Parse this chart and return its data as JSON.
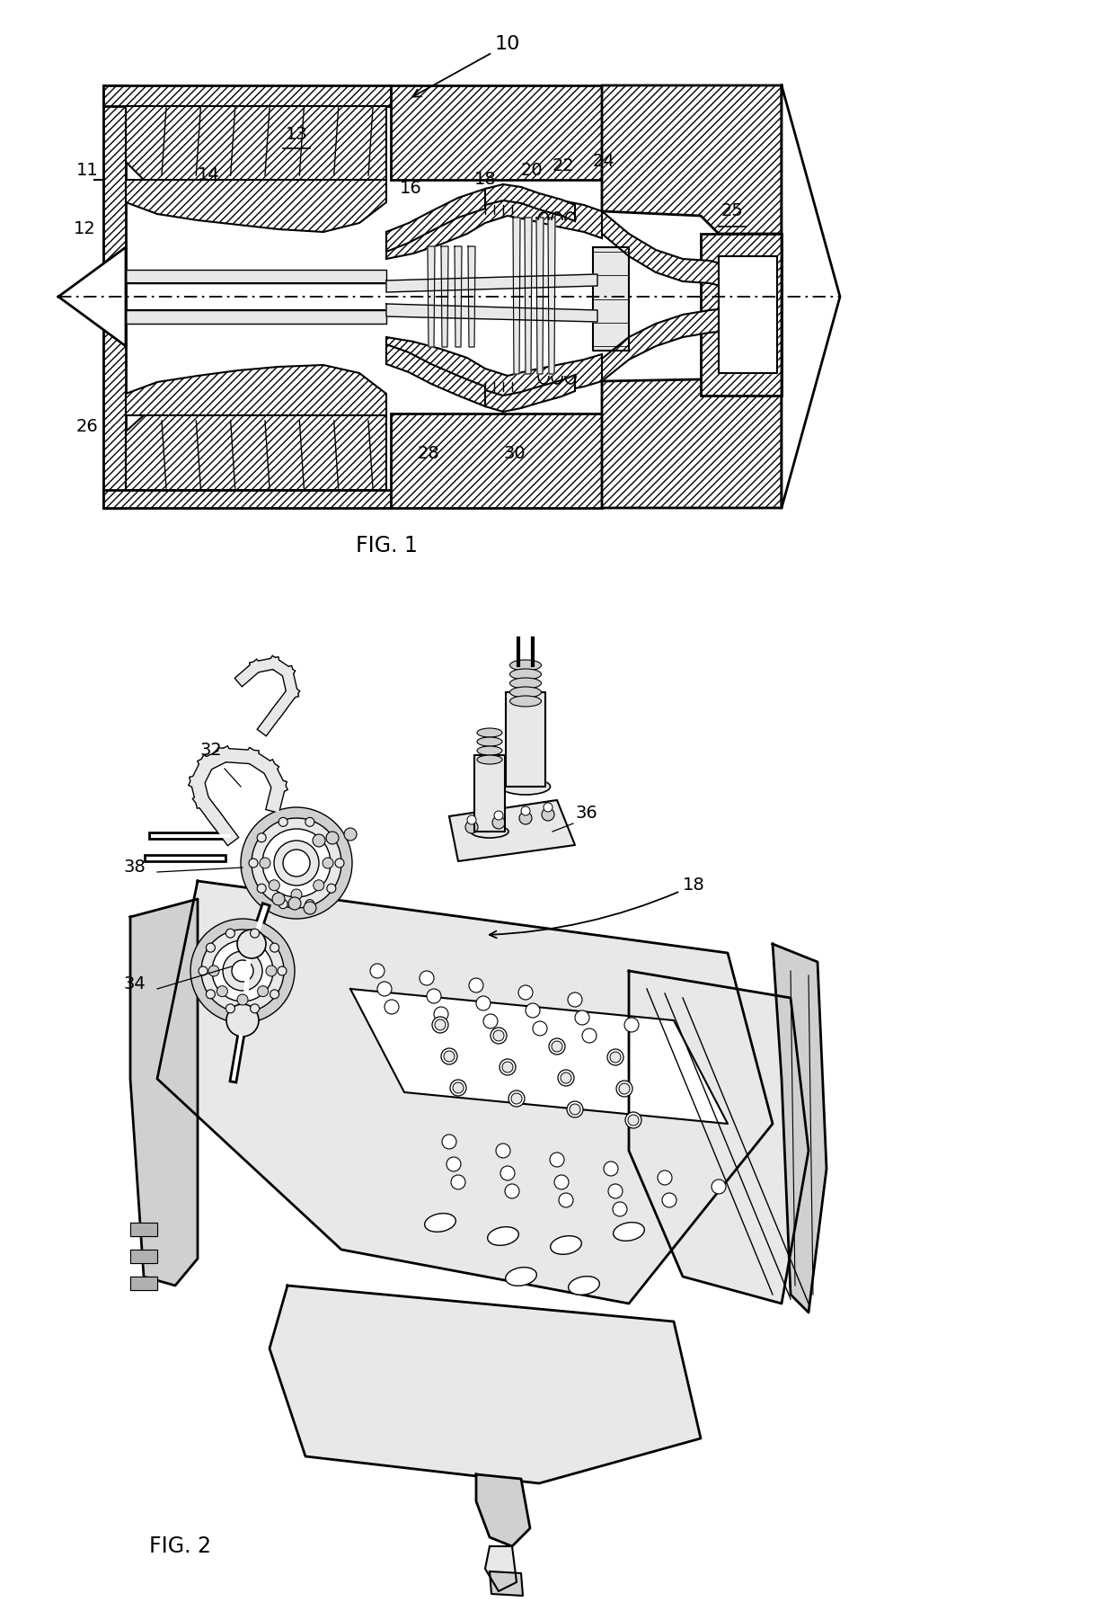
{
  "background_color": "#ffffff",
  "fig_width": 12.4,
  "fig_height": 17.82,
  "dpi": 100,
  "fig1_label": "FIG. 1",
  "fig2_label": "FIG. 2",
  "text_color": "#000000",
  "font_size_labels": 14,
  "font_size_fig": 17,
  "hatch_color": "#000000",
  "line_color": "#000000",
  "fill_light": "#e8e8e8",
  "fill_mid": "#d0d0d0",
  "fill_dark": "#b0b0b0",
  "fill_white": "#ffffff"
}
